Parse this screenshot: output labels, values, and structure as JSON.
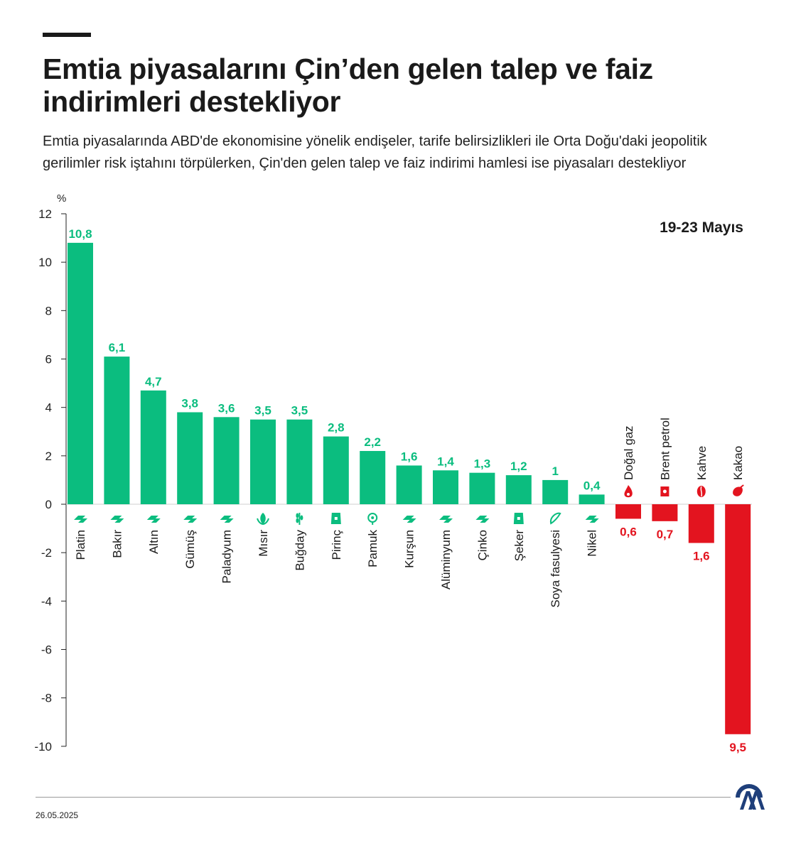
{
  "header": {
    "title": "Emtia piyasalarını Çin’den gelen talep ve faiz indirimleri destekliyor",
    "subtitle": "Emtia piyasalarında ABD'de ekonomisine yönelik endişeler, tarife belirsizlikleri ile Orta Doğu'daki jeopolitik gerilimler risk iştahını törpülerken, Çin'den gelen talep ve faiz indirimi hamlesi ise piyasaları destekliyor"
  },
  "footer": {
    "date": "26.05.2025"
  },
  "colors": {
    "positive": "#0bbd7f",
    "negative": "#e3141f",
    "axis": "#222222"
  },
  "chart_data": {
    "type": "bar",
    "period_label": "19-23 Mayıs",
    "ylabel": "%",
    "ylim": [
      -10,
      12
    ],
    "yticks": [
      12,
      10,
      8,
      6,
      4,
      2,
      0,
      -2,
      -4,
      -6,
      -8,
      -10
    ],
    "categories": [
      "Platin",
      "Bakır",
      "Altın",
      "Gümüş",
      "Paladyum",
      "Mısır",
      "Buğday",
      "Pirinç",
      "Pamuk",
      "Kurşun",
      "Alüminyum",
      "Çinko",
      "Şeker",
      "Soya fasulyesi",
      "Nikel",
      "Doğal gaz",
      "Brent petrol",
      "Kahve",
      "Kakao"
    ],
    "values": [
      10.8,
      6.1,
      4.7,
      3.8,
      3.6,
      3.5,
      3.5,
      2.8,
      2.2,
      1.6,
      1.4,
      1.3,
      1.2,
      1,
      0.4,
      -0.6,
      -0.7,
      -1.6,
      -9.5
    ],
    "data_labels": [
      "10,8",
      "6,1",
      "4,7",
      "3,8",
      "3,6",
      "3,5",
      "3,5",
      "2,8",
      "2,2",
      "1,6",
      "1,4",
      "1,3",
      "1,2",
      "1",
      "0,4",
      "0,6",
      "0,7",
      "1,6",
      "9,5"
    ],
    "icons": [
      "metal-bars-icon",
      "metal-bars-icon",
      "metal-bars-icon",
      "metal-bars-icon",
      "metal-bars-icon",
      "corn-icon",
      "wheat-icon",
      "rice-sack-icon",
      "cotton-icon",
      "metal-bars-icon",
      "metal-bars-icon",
      "metal-bars-icon",
      "sugar-sack-icon",
      "soybean-icon",
      "metal-bars-icon",
      "flame-icon",
      "oil-barrel-icon",
      "coffee-bean-icon",
      "cocoa-pod-icon"
    ]
  }
}
